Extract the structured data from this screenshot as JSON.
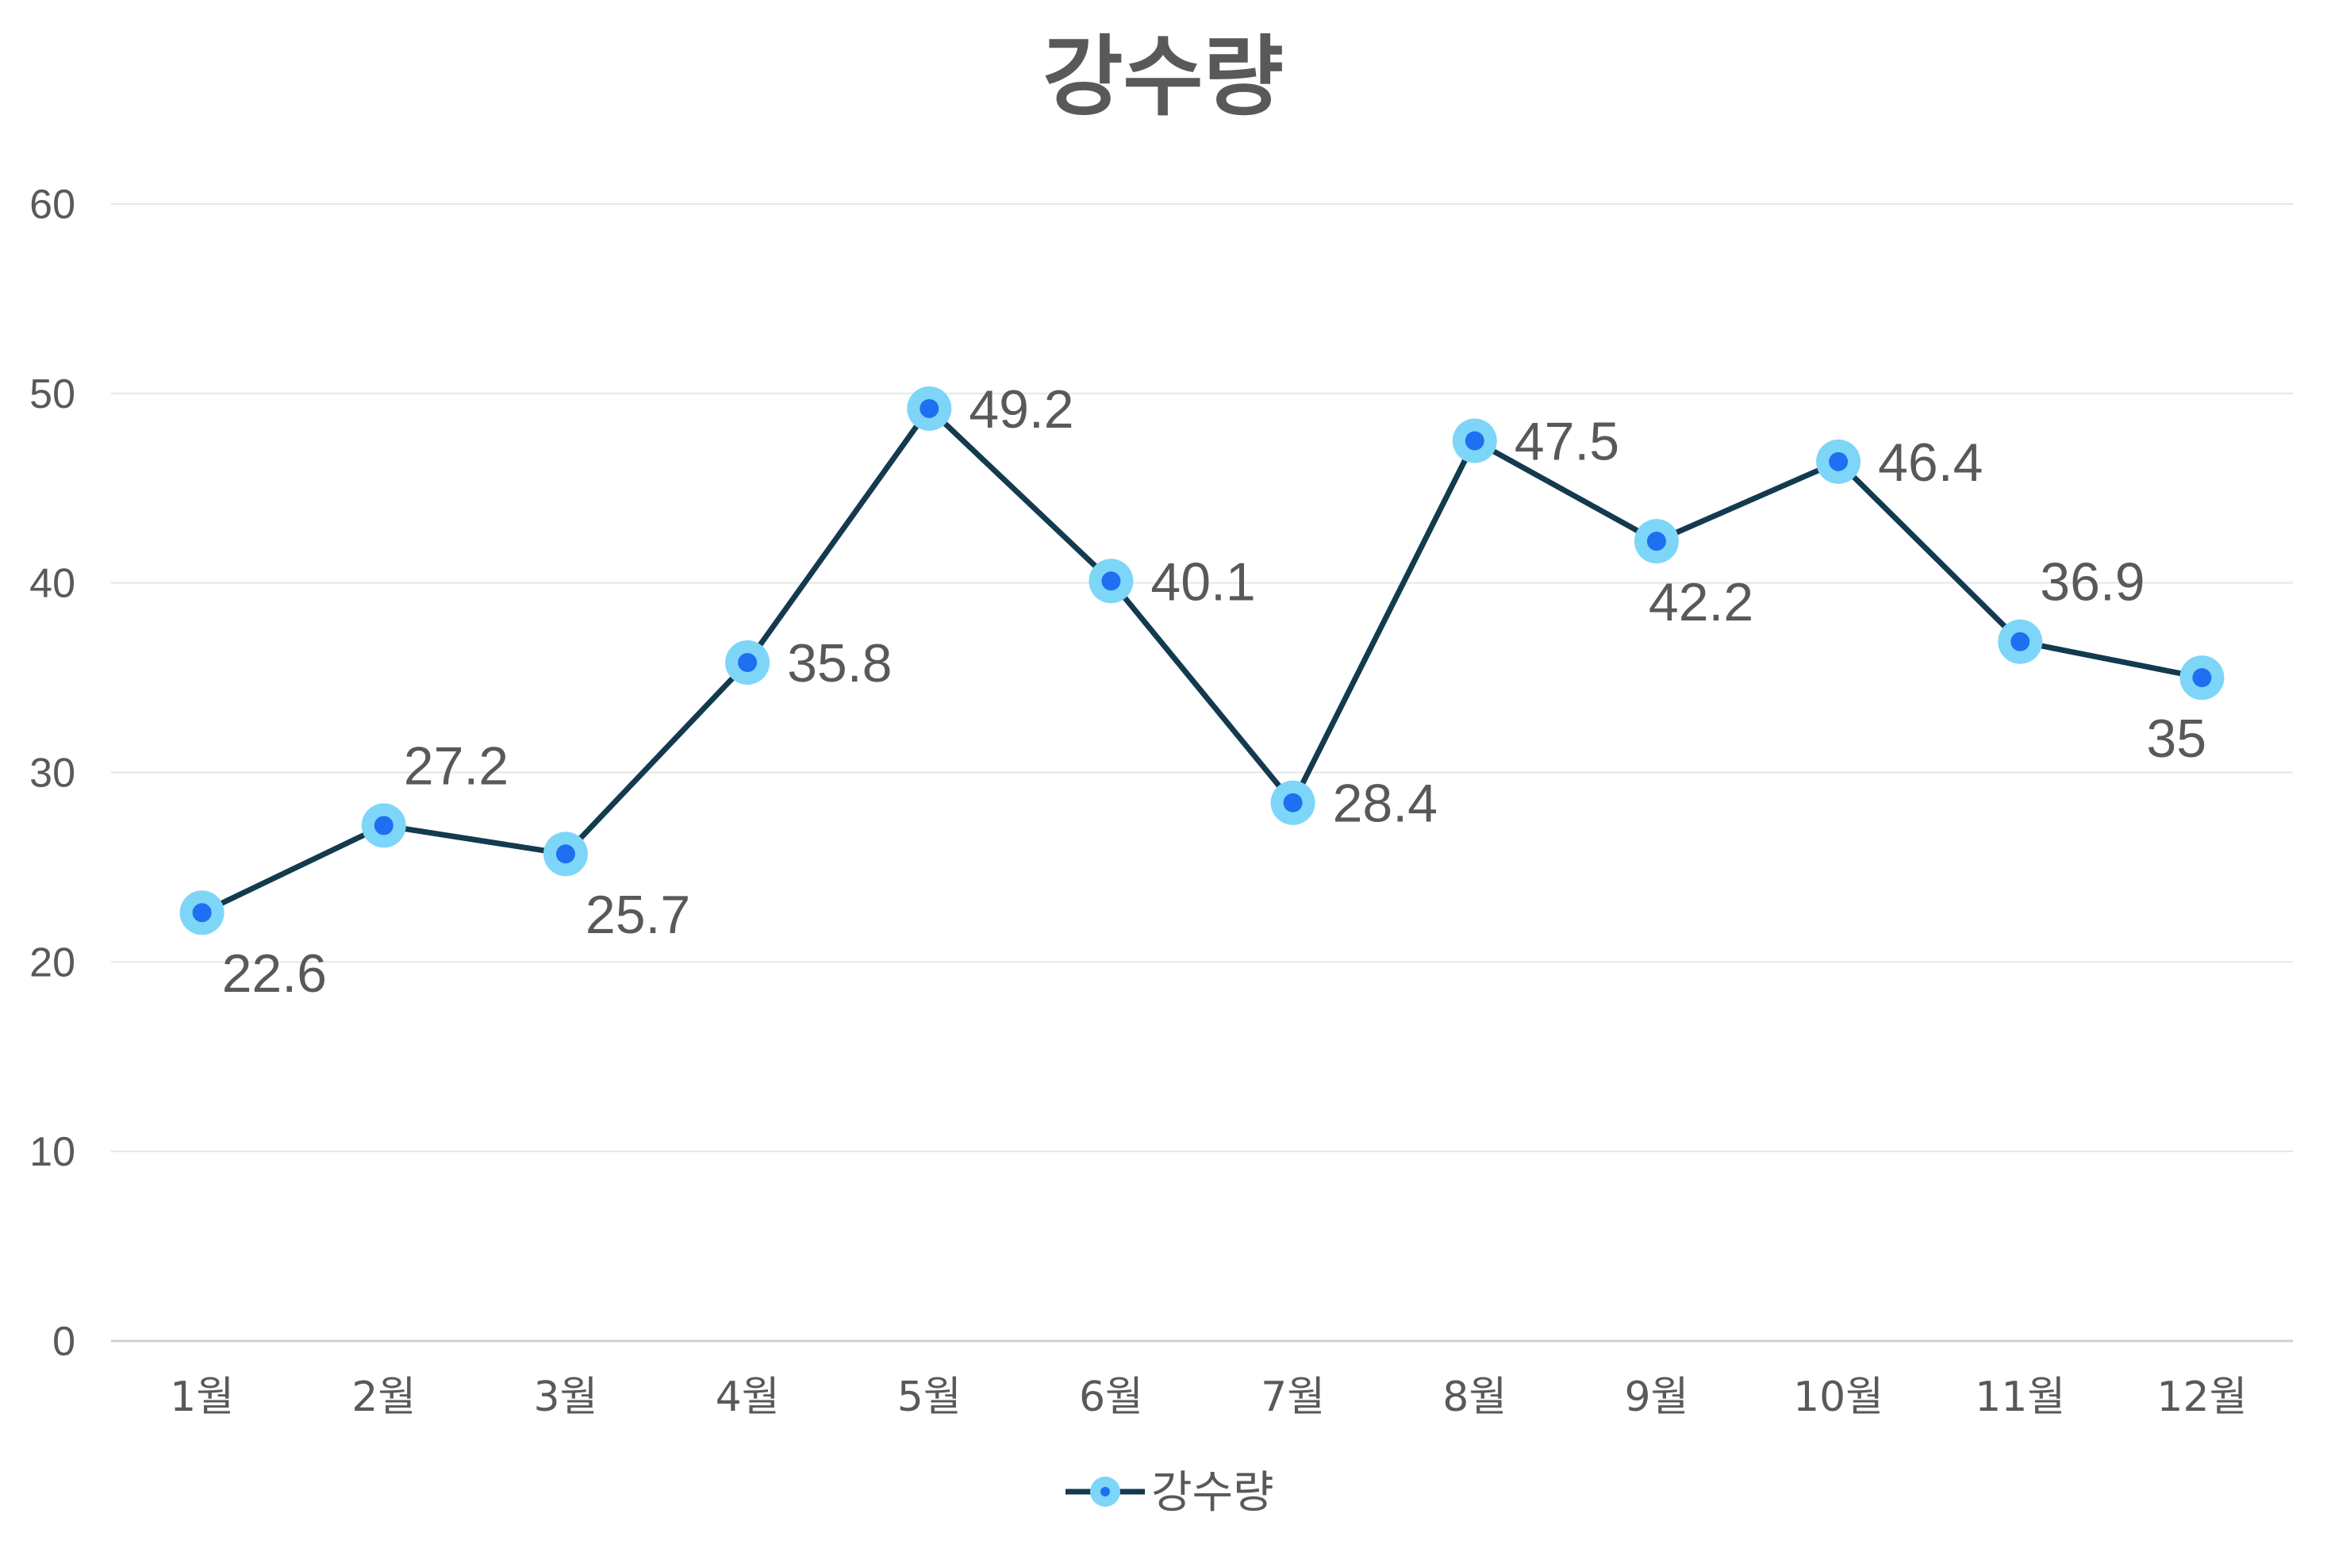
{
  "chart_data": {
    "type": "line",
    "title": "강수량",
    "xlabel": "",
    "ylabel": "",
    "categories": [
      "1월",
      "2월",
      "3월",
      "4월",
      "5월",
      "6월",
      "7월",
      "8월",
      "9월",
      "10월",
      "11월",
      "12월"
    ],
    "series": [
      {
        "name": "강수량",
        "values": [
          22.6,
          27.2,
          25.7,
          35.8,
          49.2,
          40.1,
          28.4,
          47.5,
          42.2,
          46.4,
          36.9,
          35
        ],
        "data_labels": [
          "22.6",
          "27.2",
          "25.7",
          "35.8",
          "49.2",
          "40.1",
          "28.4",
          "47.5",
          "42.2",
          "46.4",
          "36.9",
          "35"
        ],
        "label_positions": [
          "below",
          "above",
          "below",
          "right",
          "right",
          "right",
          "right",
          "right",
          "below",
          "right",
          "above",
          "below"
        ]
      }
    ],
    "yticks": [
      "0",
      "10",
      "20",
      "30",
      "40",
      "50",
      "60"
    ],
    "ylim": [
      0,
      60
    ],
    "grid": true,
    "legend": "bottom",
    "colors": {
      "line": "#133A4F",
      "marker_outer": "#7DD6F7",
      "marker_inner": "#1F6FF2",
      "grid": "#E6E6E6",
      "axis": "#D0D0D0"
    }
  }
}
